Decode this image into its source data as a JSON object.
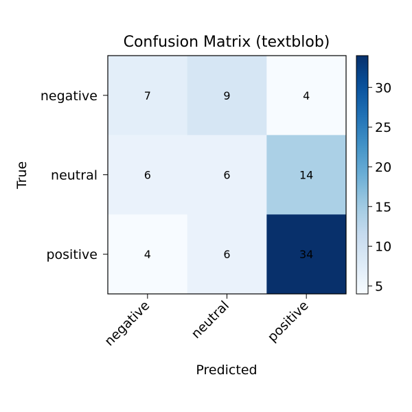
{
  "chart_data": {
    "type": "heatmap",
    "title": "Confusion Matrix (textblob)",
    "xlabel": "Predicted",
    "ylabel": "True",
    "x_categories": [
      "negative",
      "neutral",
      "positive"
    ],
    "y_categories": [
      "negative",
      "neutral",
      "positive"
    ],
    "values": [
      [
        7,
        9,
        4
      ],
      [
        6,
        6,
        14
      ],
      [
        4,
        6,
        34
      ]
    ],
    "colormap": "Blues",
    "color_range": [
      4,
      34
    ],
    "colorbar_ticks": [
      5,
      10,
      15,
      20,
      25,
      30
    ],
    "grid": false
  }
}
